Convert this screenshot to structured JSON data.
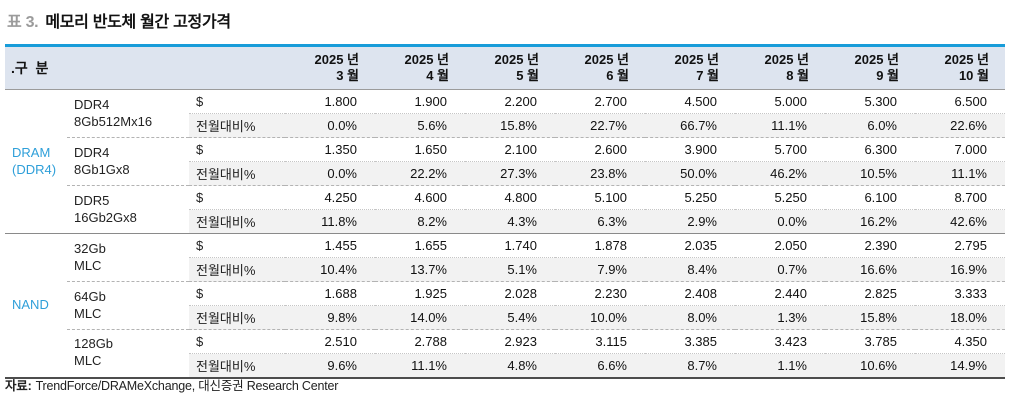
{
  "title": {
    "prefix": "표 3.",
    "text": "메모리 반도체 월간 고정가격"
  },
  "colors": {
    "accent_blue_line": "#189cd9",
    "header_bg": "#dde4ef",
    "group_label_blue": "#2e9fd9",
    "alt_row_bg": "#f2f2f2"
  },
  "chart_data": {
    "type": "table",
    "title": "표 3. 메모리 반도체 월간 고정가격",
    "corner_label": ".구  분",
    "columns": [
      {
        "year": "2025 년",
        "month": "3 월"
      },
      {
        "year": "2025 년",
        "month": "4 월"
      },
      {
        "year": "2025 년",
        "month": "5 월"
      },
      {
        "year": "2025 년",
        "month": "6 월"
      },
      {
        "year": "2025 년",
        "month": "7 월"
      },
      {
        "year": "2025 년",
        "month": "8 월"
      },
      {
        "year": "2025 년",
        "month": "9 월"
      },
      {
        "year": "2025 년",
        "month": "10 월"
      }
    ],
    "metric_labels": {
      "usd": "$",
      "mom": "전월대비%"
    },
    "groups": [
      {
        "label_lines": [
          "DRAM",
          "(DDR4)"
        ],
        "products": [
          {
            "name_lines": [
              "DDR4",
              "8Gb512Mx16"
            ],
            "usd": [
              "1.800",
              "1.900",
              "2.200",
              "2.700",
              "4.500",
              "5.000",
              "5.300",
              "6.500"
            ],
            "mom": [
              "0.0%",
              "5.6%",
              "15.8%",
              "22.7%",
              "66.7%",
              "11.1%",
              "6.0%",
              "22.6%"
            ]
          },
          {
            "name_lines": [
              "DDR4",
              "8Gb1Gx8"
            ],
            "usd": [
              "1.350",
              "1.650",
              "2.100",
              "2.600",
              "3.900",
              "5.700",
              "6.300",
              "7.000"
            ],
            "mom": [
              "0.0%",
              "22.2%",
              "27.3%",
              "23.8%",
              "50.0%",
              "46.2%",
              "10.5%",
              "11.1%"
            ]
          },
          {
            "name_lines": [
              "DDR5",
              "16Gb2Gx8"
            ],
            "usd": [
              "4.250",
              "4.600",
              "4.800",
              "5.100",
              "5.250",
              "5.250",
              "6.100",
              "8.700"
            ],
            "mom": [
              "11.8%",
              "8.2%",
              "4.3%",
              "6.3%",
              "2.9%",
              "0.0%",
              "16.2%",
              "42.6%"
            ]
          }
        ]
      },
      {
        "label_lines": [
          "NAND"
        ],
        "products": [
          {
            "name_lines": [
              "32Gb",
              "MLC"
            ],
            "usd": [
              "1.455",
              "1.655",
              "1.740",
              "1.878",
              "2.035",
              "2.050",
              "2.390",
              "2.795"
            ],
            "mom": [
              "10.4%",
              "13.7%",
              "5.1%",
              "7.9%",
              "8.4%",
              "0.7%",
              "16.6%",
              "16.9%"
            ]
          },
          {
            "name_lines": [
              "64Gb",
              "MLC"
            ],
            "usd": [
              "1.688",
              "1.925",
              "2.028",
              "2.230",
              "2.408",
              "2.440",
              "2.825",
              "3.333"
            ],
            "mom": [
              "9.8%",
              "14.0%",
              "5.4%",
              "10.0%",
              "8.0%",
              "1.3%",
              "15.8%",
              "18.0%"
            ]
          },
          {
            "name_lines": [
              "128Gb",
              "MLC"
            ],
            "usd": [
              "2.510",
              "2.788",
              "2.923",
              "3.115",
              "3.385",
              "3.423",
              "3.785",
              "4.350"
            ],
            "mom": [
              "9.6%",
              "11.1%",
              "4.8%",
              "6.6%",
              "8.7%",
              "1.1%",
              "10.6%",
              "14.9%"
            ]
          }
        ]
      }
    ]
  },
  "footer": {
    "label": "자료:",
    "text": "TrendForce/DRAMeXchange, 대신증권 Research Center"
  }
}
